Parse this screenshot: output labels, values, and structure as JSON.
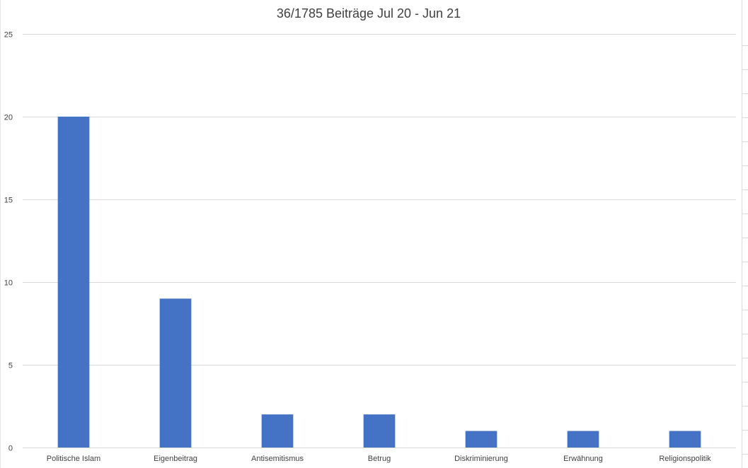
{
  "chart_data": {
    "type": "bar",
    "title": "36/1785 Beiträge Jul 20 - Jun 21",
    "xlabel": "",
    "ylabel": "",
    "categories": [
      "Politische Islam",
      "Eigenbeitrag",
      "Antisemitismus",
      "Betrug",
      "Diskriminierung",
      "Erwähnung",
      "Religionspolitik"
    ],
    "values": [
      20,
      9,
      2,
      2,
      1,
      1,
      1
    ],
    "ylim": [
      0,
      25
    ],
    "yticks": [
      0,
      5,
      10,
      15,
      20,
      25
    ],
    "grid": true,
    "legend": "none",
    "colors": {
      "bar": "#4472C4",
      "grid": "#d9d9d9",
      "text": "#404040"
    }
  }
}
